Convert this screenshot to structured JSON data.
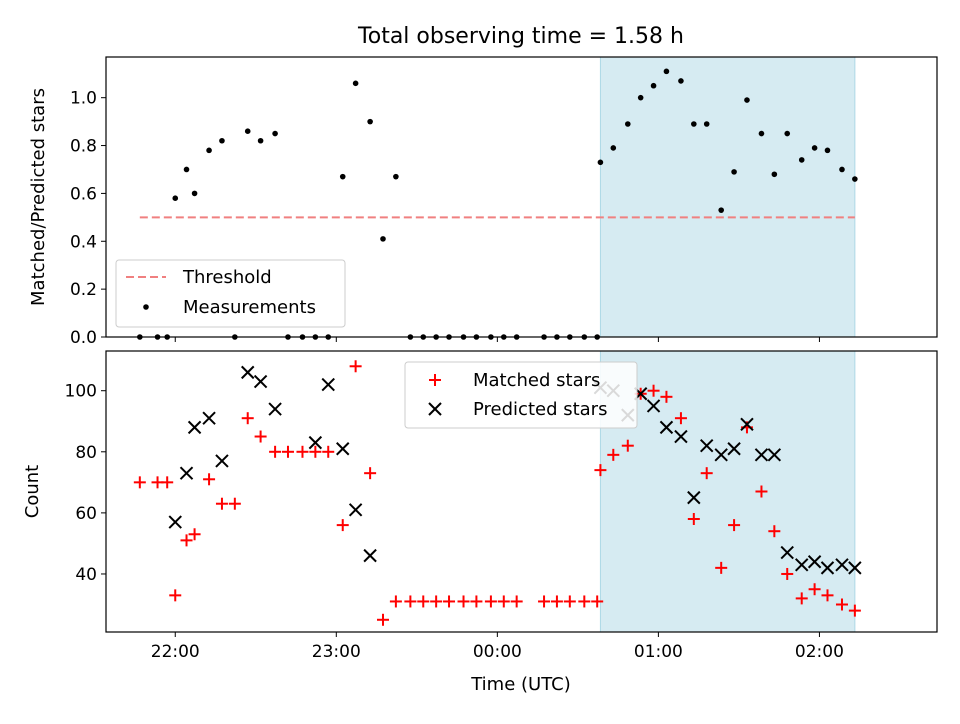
{
  "chart_data": [
    {
      "type": "scatter",
      "title": "Total observing time = 1.58 h",
      "ylabel": "Matched/Predicted stars",
      "xlabel": "",
      "ylim": [
        0,
        1.17
      ],
      "yticks": [
        "0.0",
        "0.2",
        "0.4",
        "0.6",
        "0.8",
        "1.0"
      ],
      "xtick_labels": [
        "22:00",
        "23:00",
        "00:00",
        "01:00",
        "02:00"
      ],
      "xlim_hours": [
        21.57,
        26.73
      ],
      "observing_window_hours": [
        24.64,
        26.22
      ],
      "threshold": {
        "name": "Threshold",
        "value": 0.5,
        "color": "#f08080",
        "x_range_hours": [
          21.78,
          26.22
        ]
      },
      "series": [
        {
          "name": "Measurements",
          "color": "#000000",
          "marker": "dot",
          "x_hours": [
            21.78,
            21.89,
            21.95,
            22.0,
            22.07,
            22.12,
            22.21,
            22.29,
            22.37,
            22.45,
            22.53,
            22.62,
            22.7,
            22.79,
            22.87,
            22.95,
            23.04,
            23.12,
            23.21,
            23.29,
            23.37,
            23.46,
            23.54,
            23.62,
            23.7,
            23.79,
            23.87,
            23.96,
            24.04,
            24.12,
            24.29,
            24.37,
            24.45,
            24.54,
            24.62,
            24.64,
            24.72,
            24.81,
            24.89,
            24.97,
            25.05,
            25.14,
            25.22,
            25.3,
            25.39,
            25.47,
            25.55,
            25.64,
            25.72,
            25.8,
            25.89,
            25.97,
            26.05,
            26.14,
            26.22
          ],
          "y": [
            0.0,
            0.0,
            0.0,
            0.58,
            0.7,
            0.6,
            0.78,
            0.82,
            0.0,
            0.86,
            0.82,
            0.85,
            0.0,
            0.0,
            0.0,
            0.0,
            0.67,
            1.06,
            0.9,
            0.41,
            0.67,
            0.0,
            0.0,
            0.0,
            0.0,
            0.0,
            0.0,
            0.0,
            0.0,
            0.0,
            0.0,
            0.0,
            0.0,
            0.0,
            0.0,
            0.73,
            0.79,
            0.89,
            1.0,
            1.05,
            1.11,
            1.07,
            0.89,
            0.89,
            0.53,
            0.69,
            0.99,
            0.85,
            0.68,
            0.85,
            0.74,
            0.79,
            0.78,
            0.7,
            0.66
          ]
        }
      ],
      "legend": {
        "position": "lower-left",
        "entries": [
          "Threshold",
          "Measurements"
        ]
      }
    },
    {
      "type": "scatter",
      "title": "",
      "xlabel": "Time (UTC)",
      "ylabel": "Count",
      "ylim": [
        21,
        113
      ],
      "yticks": [
        "40",
        "60",
        "80",
        "100"
      ],
      "xtick_labels": [
        "22:00",
        "23:00",
        "00:00",
        "01:00",
        "02:00"
      ],
      "xlim_hours": [
        21.57,
        26.73
      ],
      "observing_window_hours": [
        24.64,
        26.22
      ],
      "series": [
        {
          "name": "Matched stars",
          "color": "#ff0000",
          "marker": "plus",
          "x_hours": [
            21.78,
            21.89,
            21.95,
            22.0,
            22.07,
            22.12,
            22.21,
            22.29,
            22.37,
            22.45,
            22.53,
            22.62,
            22.7,
            22.79,
            22.87,
            22.95,
            23.04,
            23.12,
            23.21,
            23.29,
            23.37,
            23.46,
            23.54,
            23.62,
            23.7,
            23.79,
            23.87,
            23.96,
            24.04,
            24.12,
            24.29,
            24.37,
            24.45,
            24.54,
            24.62,
            24.64,
            24.72,
            24.81,
            24.89,
            24.97,
            25.05,
            25.14,
            25.22,
            25.3,
            25.39,
            25.47,
            25.55,
            25.64,
            25.72,
            25.8,
            25.89,
            25.97,
            26.05,
            26.14,
            26.22
          ],
          "y": [
            70,
            70,
            70,
            33,
            51,
            53,
            71,
            63,
            63,
            91,
            85,
            80,
            80,
            80,
            80,
            80,
            56,
            108,
            73,
            25,
            31,
            31,
            31,
            31,
            31,
            31,
            31,
            31,
            31,
            31,
            31,
            31,
            31,
            31,
            31,
            74,
            79,
            82,
            99,
            100,
            98,
            91,
            58,
            73,
            42,
            56,
            88,
            67,
            54,
            40,
            32,
            35,
            33,
            30,
            28
          ]
        },
        {
          "name": "Predicted stars",
          "color": "#000000",
          "marker": "x",
          "x_hours": [
            22.0,
            22.07,
            22.12,
            22.21,
            22.29,
            22.45,
            22.53,
            22.62,
            22.87,
            22.95,
            23.04,
            23.12,
            23.21,
            24.64,
            24.72,
            24.81,
            24.89,
            24.97,
            25.05,
            25.14,
            25.22,
            25.3,
            25.39,
            25.47,
            25.55,
            25.64,
            25.72,
            25.8,
            25.89,
            25.97,
            26.05,
            26.14,
            26.22
          ],
          "y": [
            57,
            73,
            88,
            91,
            77,
            106,
            103,
            94,
            83,
            102,
            81,
            61,
            46,
            101,
            100,
            92,
            99,
            95,
            88,
            85,
            65,
            82,
            79,
            81,
            89,
            79,
            79,
            47,
            43,
            44,
            42,
            43,
            42
          ]
        }
      ],
      "legend": {
        "position": "upper-center",
        "entries": [
          "Matched stars",
          "Predicted stars"
        ]
      }
    }
  ]
}
